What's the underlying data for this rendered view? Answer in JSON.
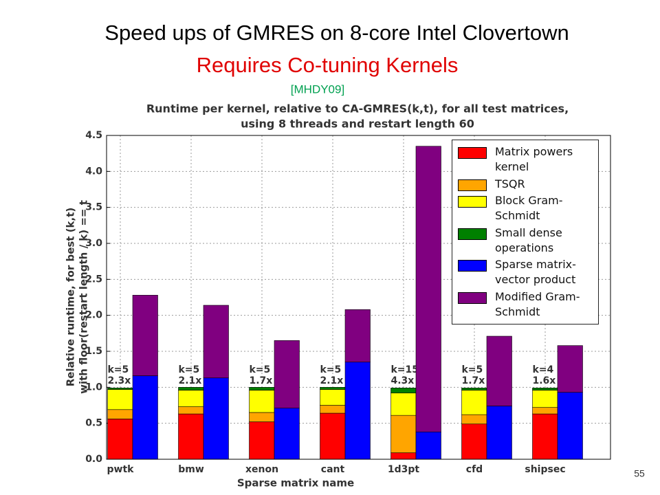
{
  "slide_title": "Speed ups of GMRES on 8-core Intel Clovertown",
  "slide_subtitle": "Requires Co-tuning Kernels",
  "citation": "[MHDY09]",
  "page_number": "55",
  "chart_data": {
    "type": "stacked_bar",
    "title": [
      "Runtime per kernel, relative to CA-GMRES(k,t), for all test matrices,",
      "using 8 threads and restart length 60"
    ],
    "ylabel": [
      "Relative runtime, for best (k,t)",
      "with floor(restart length / k) == t"
    ],
    "xlabel": "Sparse matrix name",
    "categories": [
      "pwtk",
      "bmw",
      "xenon",
      "cant",
      "1d3pt",
      "cfd",
      "shipsec"
    ],
    "k_labels": [
      "k=5",
      "k=5",
      "k=5",
      "k=5",
      "k=15",
      "k=5",
      "k=4"
    ],
    "speedups": [
      "2.3x",
      "2.1x",
      "1.7x",
      "2.1x",
      "4.3x",
      "1.7x",
      "1.6x"
    ],
    "series": [
      {
        "name": "Matrix powers kernel",
        "color": "#ff0000",
        "stack": 1,
        "values": [
          0.56,
          0.63,
          0.52,
          0.64,
          0.09,
          0.49,
          0.63
        ]
      },
      {
        "name": "TSQR",
        "color": "#ffa500",
        "stack": 1,
        "values": [
          0.13,
          0.1,
          0.13,
          0.11,
          0.52,
          0.13,
          0.09
        ]
      },
      {
        "name": "Block Gram-Schmidt",
        "color": "#ffff00",
        "stack": 1,
        "values": [
          0.28,
          0.23,
          0.31,
          0.22,
          0.31,
          0.34,
          0.24
        ]
      },
      {
        "name": "Small dense operations",
        "color": "#008000",
        "stack": 1,
        "values": [
          0.02,
          0.04,
          0.04,
          0.03,
          0.07,
          0.03,
          0.03
        ]
      },
      {
        "name": "Sparse matrix-vector product",
        "color": "#0000ff",
        "stack": 2,
        "values": [
          1.16,
          1.13,
          0.71,
          1.35,
          0.38,
          0.74,
          0.93
        ]
      },
      {
        "name": "Modified Gram-Schmidt",
        "color": "#800080",
        "stack": 2,
        "values": [
          1.12,
          1.01,
          0.94,
          0.73,
          3.97,
          0.97,
          0.65
        ]
      }
    ],
    "ylim": [
      0,
      4.5
    ],
    "yticks": [
      {
        "value": 0,
        "label": "0.0"
      },
      {
        "value": 0.5,
        "label": "0.5"
      },
      {
        "value": 1,
        "label": "1.0"
      },
      {
        "value": 1.5,
        "label": "1.5"
      },
      {
        "value": 2,
        "label": "2.0"
      },
      {
        "value": 2.5,
        "label": "2.5"
      },
      {
        "value": 3,
        "label": "3.0"
      },
      {
        "value": 3.5,
        "label": "3.5"
      },
      {
        "value": 4,
        "label": "4.0"
      },
      {
        "value": 4.5,
        "label": "4.5"
      }
    ],
    "grid": true,
    "legend": "upper right"
  }
}
